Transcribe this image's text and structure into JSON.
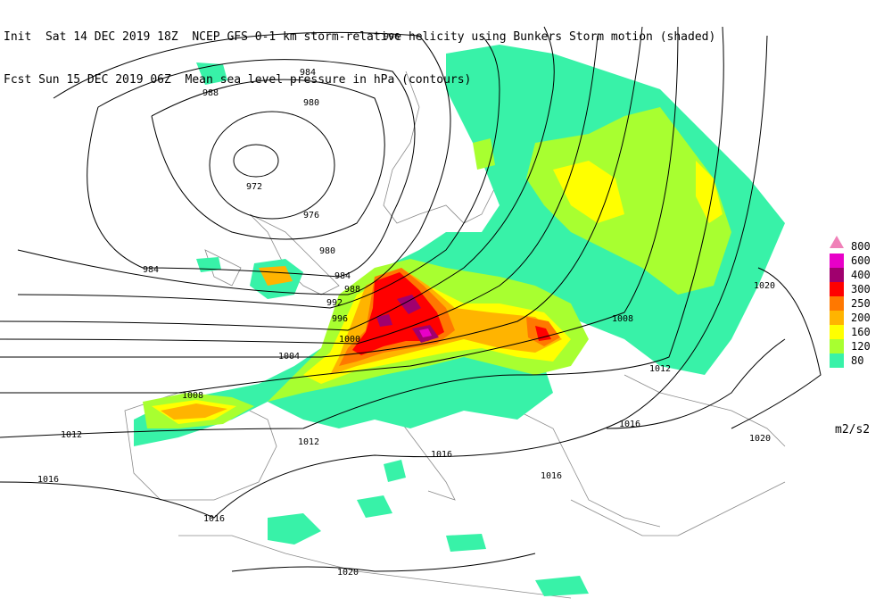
{
  "header": {
    "line1": "Init  Sat 14 DEC 2019 18Z  NCEP GFS 0-1 km storm-relative helicity using Bunkers Storm motion (shaded)",
    "line2": "Fcst Sun 15 DEC 2019 06Z  Mean sea level pressure in hPa (contours)"
  },
  "legend": {
    "units": "m2/s2",
    "levels": [
      {
        "label": "800",
        "color": "#f080b8"
      },
      {
        "label": "600",
        "color": "#e800c8"
      },
      {
        "label": "400",
        "color": "#a0006e"
      },
      {
        "label": "300",
        "color": "#ff0000"
      },
      {
        "label": "250",
        "color": "#ff7800"
      },
      {
        "label": "200",
        "color": "#ffb400"
      },
      {
        "label": "160",
        "color": "#ffff00"
      },
      {
        "label": "120",
        "color": "#a8ff30"
      },
      {
        "label": "80",
        "color": "#38f2a8"
      }
    ]
  },
  "isobar_labels": [
    "996",
    "984",
    "988",
    "980",
    "972",
    "976",
    "980",
    "984",
    "984",
    "988",
    "992",
    "996",
    "1000",
    "1004",
    "1008",
    "1012",
    "1012",
    "1016",
    "1016",
    "1016",
    "1020",
    "1008",
    "1012",
    "1016",
    "1020",
    "1016",
    "1020"
  ]
}
